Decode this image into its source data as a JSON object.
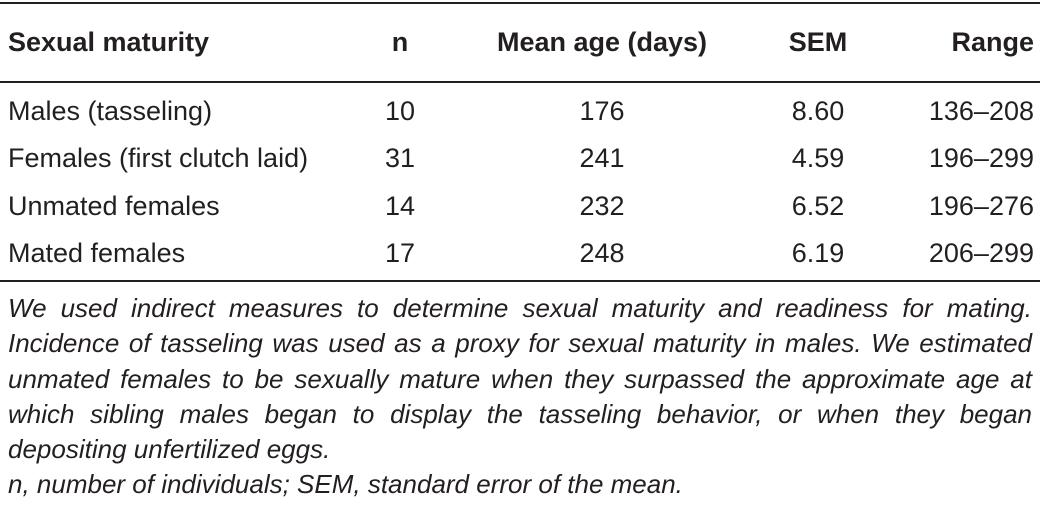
{
  "table": {
    "headers": [
      "Sexual maturity",
      "n",
      "Mean age (days)",
      "SEM",
      "Range"
    ],
    "rows": [
      [
        "Males (tasseling)",
        "10",
        "176",
        "8.60",
        "136–208"
      ],
      [
        "Females (first clutch laid)",
        "31",
        "241",
        "4.59",
        "196–299"
      ],
      [
        "Unmated females",
        "14",
        "232",
        "6.52",
        "196–276"
      ],
      [
        "Mated females",
        "17",
        "248",
        "6.19",
        "206–299"
      ]
    ]
  },
  "footnotes": {
    "note": "We used indirect measures to determine sexual maturity and readiness for mating. Incidence of tasseling was used as a proxy for sexual maturity in males. We estimated unmated females to be sexually mature when they surpassed the approximate age at which sibling males began to display the tasseling behavior, or when they began depositing unfertilized eggs.",
    "abbreviations": "n, number of individuals; SEM, standard error of the mean."
  }
}
